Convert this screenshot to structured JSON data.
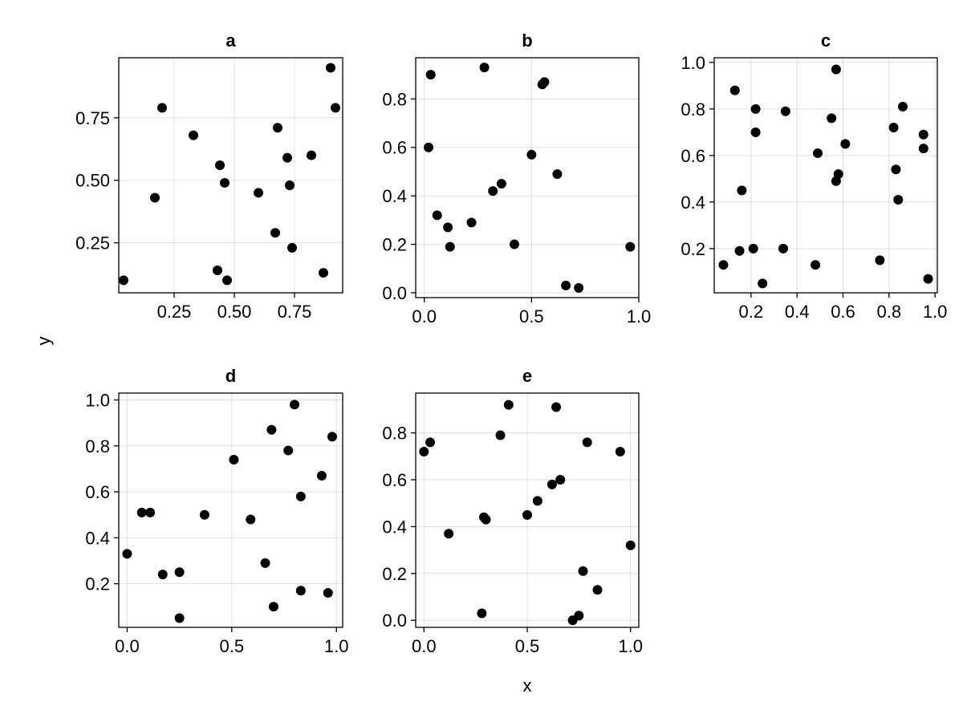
{
  "figure": {
    "xlabel": "x",
    "ylabel": "y"
  },
  "colors": {
    "point": "#000000",
    "background": "#ffffff"
  },
  "chart_data": [
    {
      "type": "scatter",
      "title": "a",
      "xlim": [
        0.02,
        0.95
      ],
      "ylim": [
        0.05,
        0.99
      ],
      "xticks": [
        0.25,
        0.5,
        0.75
      ],
      "xtick_labels": [
        "0.25",
        "0.50",
        "0.75"
      ],
      "yticks": [
        0.25,
        0.5,
        0.75
      ],
      "ytick_labels": [
        "0.25",
        "0.50",
        "0.75"
      ],
      "grid": true,
      "x": [
        0.04,
        0.17,
        0.2,
        0.33,
        0.43,
        0.44,
        0.46,
        0.47,
        0.6,
        0.67,
        0.68,
        0.72,
        0.73,
        0.74,
        0.82,
        0.87,
        0.9,
        0.92
      ],
      "y": [
        0.1,
        0.43,
        0.79,
        0.68,
        0.14,
        0.56,
        0.49,
        0.1,
        0.45,
        0.29,
        0.71,
        0.59,
        0.48,
        0.23,
        0.6,
        0.13,
        0.95,
        0.79
      ]
    },
    {
      "type": "scatter",
      "title": "b",
      "xlim": [
        -0.04,
        1.0
      ],
      "ylim": [
        -0.02,
        0.97
      ],
      "xticks": [
        0,
        0.5,
        1
      ],
      "xtick_labels": [
        "0.0",
        "0.5",
        "1.0"
      ],
      "yticks": [
        0,
        0.2,
        0.4,
        0.6,
        0.8
      ],
      "ytick_labels": [
        "0.0",
        "0.2",
        "0.4",
        "0.6",
        "0.8"
      ],
      "grid": true,
      "x": [
        0.02,
        0.03,
        0.06,
        0.11,
        0.12,
        0.22,
        0.28,
        0.32,
        0.36,
        0.42,
        0.5,
        0.55,
        0.56,
        0.62,
        0.66,
        0.72,
        0.96
      ],
      "y": [
        0.6,
        0.9,
        0.32,
        0.27,
        0.19,
        0.29,
        0.93,
        0.42,
        0.45,
        0.2,
        0.57,
        0.86,
        0.87,
        0.49,
        0.03,
        0.02,
        0.19
      ]
    },
    {
      "type": "scatter",
      "title": "c",
      "xlim": [
        0.04,
        1.01
      ],
      "ylim": [
        0.01,
        1.02
      ],
      "xticks": [
        0.2,
        0.4,
        0.6,
        0.8,
        1.0
      ],
      "xtick_labels": [
        "0.2",
        "0.4",
        "0.6",
        "0.8",
        "1.0"
      ],
      "yticks": [
        0.2,
        0.4,
        0.6,
        0.8,
        1.0
      ],
      "ytick_labels": [
        "0.2",
        "0.4",
        "0.6",
        "0.8",
        "1.0"
      ],
      "grid": true,
      "x": [
        0.08,
        0.13,
        0.15,
        0.16,
        0.21,
        0.22,
        0.22,
        0.25,
        0.34,
        0.35,
        0.48,
        0.49,
        0.55,
        0.57,
        0.57,
        0.58,
        0.61,
        0.76,
        0.82,
        0.83,
        0.84,
        0.86,
        0.95,
        0.95,
        0.97
      ],
      "y": [
        0.13,
        0.88,
        0.19,
        0.45,
        0.2,
        0.7,
        0.8,
        0.05,
        0.2,
        0.79,
        0.13,
        0.61,
        0.76,
        0.97,
        0.49,
        0.52,
        0.65,
        0.15,
        0.72,
        0.54,
        0.41,
        0.81,
        0.69,
        0.63,
        0.07
      ]
    },
    {
      "type": "scatter",
      "title": "d",
      "xlim": [
        -0.04,
        1.03
      ],
      "ylim": [
        0.01,
        1.03
      ],
      "xticks": [
        0,
        0.5,
        1
      ],
      "xtick_labels": [
        "0.0",
        "0.5",
        "1.0"
      ],
      "yticks": [
        0.2,
        0.4,
        0.6,
        0.8,
        1.0
      ],
      "ytick_labels": [
        "0.2",
        "0.4",
        "0.6",
        "0.8",
        "1.0"
      ],
      "grid": true,
      "x": [
        0.0,
        0.07,
        0.11,
        0.17,
        0.25,
        0.25,
        0.37,
        0.51,
        0.59,
        0.66,
        0.69,
        0.7,
        0.77,
        0.8,
        0.83,
        0.83,
        0.93,
        0.96,
        0.98
      ],
      "y": [
        0.33,
        0.51,
        0.51,
        0.24,
        0.05,
        0.25,
        0.5,
        0.74,
        0.48,
        0.29,
        0.87,
        0.1,
        0.78,
        0.98,
        0.58,
        0.17,
        0.67,
        0.16,
        0.84
      ]
    },
    {
      "type": "scatter",
      "title": "e",
      "xlim": [
        -0.04,
        1.04
      ],
      "ylim": [
        -0.03,
        0.97
      ],
      "xticks": [
        0,
        0.5,
        1
      ],
      "xtick_labels": [
        "0.0",
        "0.5",
        "1.0"
      ],
      "yticks": [
        0,
        0.2,
        0.4,
        0.6,
        0.8
      ],
      "ytick_labels": [
        "0.0",
        "0.2",
        "0.4",
        "0.6",
        "0.8"
      ],
      "grid": true,
      "x": [
        0.0,
        0.03,
        0.12,
        0.28,
        0.29,
        0.3,
        0.37,
        0.41,
        0.5,
        0.55,
        0.62,
        0.64,
        0.66,
        0.72,
        0.75,
        0.77,
        0.79,
        0.84,
        0.95,
        1.0
      ],
      "y": [
        0.72,
        0.76,
        0.37,
        0.03,
        0.44,
        0.43,
        0.79,
        0.92,
        0.45,
        0.51,
        0.58,
        0.91,
        0.6,
        0.0,
        0.02,
        0.21,
        0.76,
        0.13,
        0.72,
        0.32
      ]
    }
  ]
}
